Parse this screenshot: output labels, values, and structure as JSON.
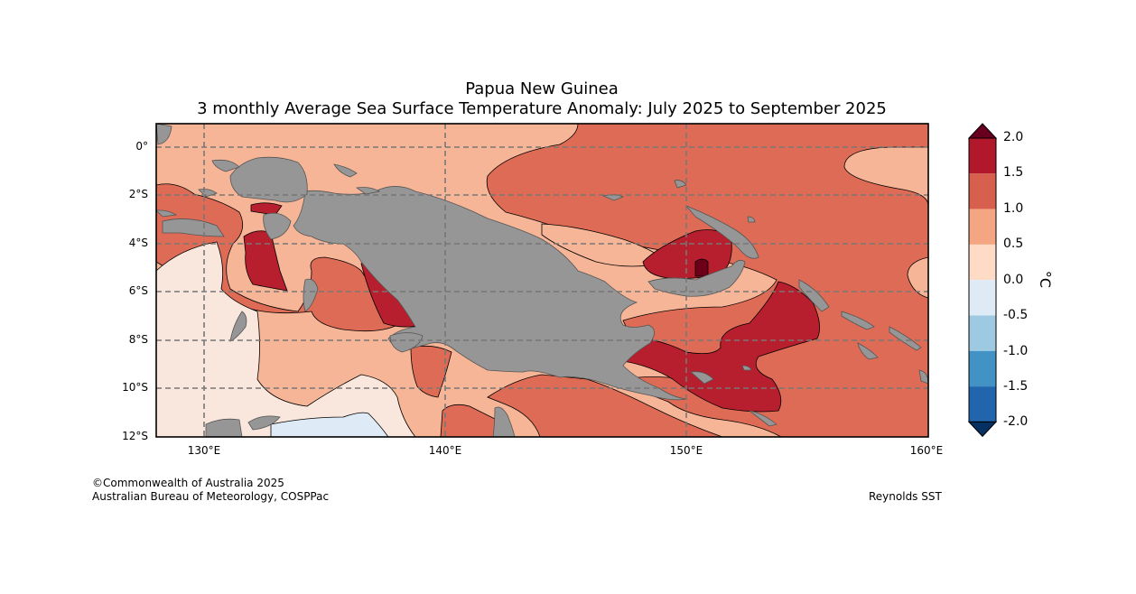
{
  "title": {
    "line1": "Papua New Guinea",
    "line2": "3 monthly Average Sea Surface Temperature Anomaly: July 2025 to September 2025"
  },
  "axes": {
    "lat_ticks": [
      "0°",
      "2°S",
      "4°S",
      "6°S",
      "8°S",
      "10°S",
      "12°S"
    ],
    "lon_ticks": [
      "130°E",
      "140°E",
      "150°E",
      "160°E"
    ],
    "lon_range": [
      128,
      160
    ],
    "lat_range": [
      1,
      -12
    ]
  },
  "colorbar": {
    "labels": [
      "2.0",
      "1.5",
      "1.0",
      "0.5",
      "0.0",
      "-0.5",
      "-1.0",
      "-1.5",
      "-2.0"
    ],
    "colors": [
      "#b2182b",
      "#d6604d",
      "#f4a582",
      "#fddbc7",
      "#deebf7",
      "#9ecae1",
      "#4292c6",
      "#2166ac"
    ],
    "over_color": "#67001f",
    "under_color": "#053061",
    "unit": "°C"
  },
  "footer": {
    "copyright": "©Commonwealth of Australia 2025",
    "agency": "Australian Bureau of Meteorology, COSPPac",
    "source": "Reynolds SST"
  },
  "colors": {
    "land": "#969696",
    "a0_05": "#f9e6dc",
    "a05_1": "#f6b596",
    "a1_15": "#de6b55",
    "a15_2": "#b81f2e",
    "a2p": "#6b0018",
    "neg": "#deebf7"
  }
}
